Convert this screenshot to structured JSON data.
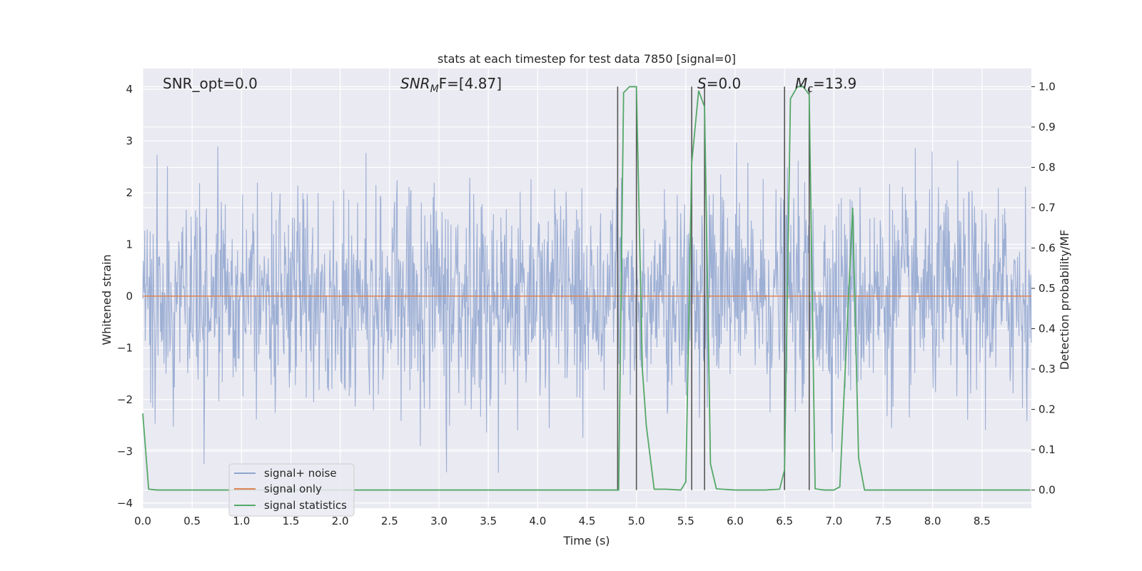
{
  "chart_data": {
    "type": "line",
    "title": "stats at each timestep for test data 7850 [signal=0]",
    "xlabel": "Time (s)",
    "ylabel_left": "Whitened strain",
    "ylabel_right": "Detection probability/MF",
    "xlim": [
      0.0,
      9.0
    ],
    "ylim_left": [
      -4.1,
      4.4
    ],
    "ylim_right": [
      -0.045,
      1.045
    ],
    "grid": true,
    "x_ticks": [
      "0.0",
      "0.5",
      "1.0",
      "1.5",
      "2.0",
      "2.5",
      "3.0",
      "3.5",
      "4.0",
      "4.5",
      "5.0",
      "5.5",
      "6.0",
      "6.5",
      "7.0",
      "7.5",
      "8.0",
      "8.5"
    ],
    "y_ticks_left": [
      "4",
      "3",
      "2",
      "1",
      "0",
      "−1",
      "−2",
      "−3",
      "−4"
    ],
    "y_ticks_right": [
      "1.0",
      "0.9",
      "0.8",
      "0.7",
      "0.6",
      "0.5",
      "0.4",
      "0.3",
      "0.2",
      "0.1",
      "0.0"
    ],
    "annotations": {
      "snr_opt": "SNR_opt=0.0",
      "snr_mf_sym": "SNR",
      "snr_mf_sub": "M",
      "snr_mf_rest": "F=[4.87]",
      "s_sym": "S",
      "s_rest": "=0.0",
      "mc_sym": "M",
      "mc_sub": "c",
      "mc_rest": "=13.9"
    },
    "legend": {
      "position": "lower left",
      "entries": [
        "signal+ noise",
        "signal only",
        "signal statistics"
      ]
    },
    "colors": {
      "noise": "#8fa5cf",
      "signal": "#dd8452",
      "stats": "#55a868",
      "vlines": "#555555",
      "background": "#eaeaf2",
      "grid": "#ffffff"
    },
    "series": [
      {
        "name": "signal statistics",
        "axis": "right",
        "x": [
          0.0,
          0.06,
          0.15,
          0.5,
          1.0,
          2.0,
          3.0,
          4.0,
          4.5,
          4.75,
          4.82,
          4.87,
          4.93,
          5.0,
          5.06,
          5.1,
          5.18,
          5.3,
          5.45,
          5.5,
          5.56,
          5.63,
          5.69,
          5.75,
          5.81,
          6.0,
          6.3,
          6.45,
          6.5,
          6.56,
          6.63,
          6.69,
          6.75,
          6.81,
          6.9,
          7.0,
          7.06,
          7.19,
          7.25,
          7.31,
          7.5,
          8.0,
          8.5,
          8.99
        ],
        "y": [
          0.19,
          0.002,
          0.0,
          0.0,
          0.0,
          0.0,
          0.0,
          0.0,
          0.0,
          0.0,
          0.0,
          0.985,
          1.0,
          1.0,
          0.3,
          0.16,
          0.002,
          0.002,
          0.0,
          0.02,
          0.81,
          0.99,
          0.95,
          0.065,
          0.003,
          0.0,
          0.0,
          0.002,
          0.05,
          0.97,
          1.0,
          1.0,
          0.98,
          0.003,
          0.0,
          0.0,
          0.008,
          0.7,
          0.08,
          0.0,
          0.0,
          0.0,
          0.0,
          0.0
        ]
      },
      {
        "name": "signal only",
        "axis": "left",
        "x": [
          0.0,
          9.0
        ],
        "y": [
          0.0,
          0.0
        ]
      },
      {
        "name": "signal+ noise",
        "axis": "left",
        "description_values": "dense whitened noise, roughly within [-3.5, 4.0]"
      }
    ],
    "vlines_x": [
      4.81,
      5.0,
      5.56,
      5.69,
      6.5,
      6.75
    ]
  }
}
